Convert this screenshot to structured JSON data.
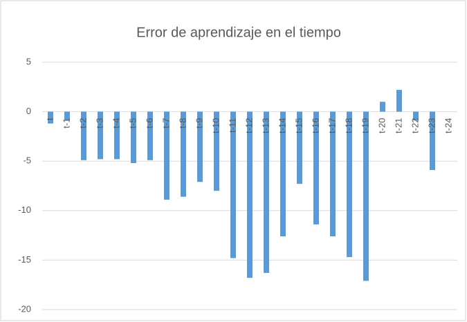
{
  "chart_data": {
    "type": "bar",
    "title": "Error de aprendizaje en el tiempo",
    "categories": [
      "t",
      "t-1",
      "t-2",
      "t-3",
      "t-4",
      "t-5",
      "t-6",
      "t-7",
      "t-8",
      "t-9",
      "t-10",
      "t-11",
      "t-12",
      "t-13",
      "t-14",
      "t-15",
      "t-16",
      "t-17",
      "t-18",
      "t-19",
      "t-20",
      "t-21",
      "t-22",
      "t-23",
      "t-24"
    ],
    "values": [
      -1.2,
      -0.9,
      -4.9,
      -4.8,
      -4.8,
      -5.2,
      -4.9,
      -8.9,
      -8.6,
      -7.1,
      -8.0,
      -14.8,
      -16.8,
      -16.3,
      -12.6,
      -7.3,
      -11.4,
      -12.6,
      -14.7,
      -17.1,
      1.0,
      2.2,
      -0.9,
      -5.9,
      0
    ],
    "color": "#5b9bd5",
    "ylim": [
      -20,
      5
    ],
    "yticks": [
      -20,
      -15,
      -10,
      -5,
      0,
      5
    ],
    "grid": true
  }
}
